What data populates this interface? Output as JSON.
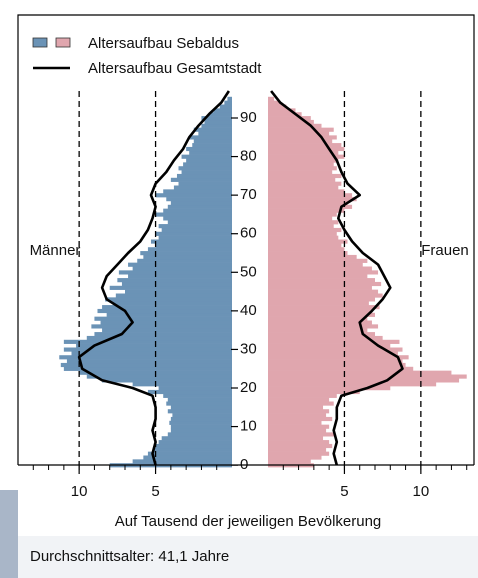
{
  "chart_data": {
    "type": "pyramid",
    "left_label": "Männer",
    "right_label": "Frauen",
    "xlabel": "Auf Tausend der jeweiligen Bevölkerung",
    "footer": "Durchschnittsalter: 41,1 Jahre",
    "xlim": [
      0,
      14
    ],
    "xticks": [
      5,
      10
    ],
    "ylim": [
      -1,
      97
    ],
    "yticks": [
      0,
      10,
      20,
      30,
      40,
      50,
      60,
      70,
      80,
      90
    ],
    "ages": [
      0,
      1,
      2,
      3,
      4,
      5,
      6,
      7,
      8,
      9,
      10,
      11,
      12,
      13,
      14,
      15,
      16,
      17,
      18,
      19,
      20,
      21,
      22,
      23,
      24,
      25,
      26,
      27,
      28,
      29,
      30,
      31,
      32,
      33,
      34,
      35,
      36,
      37,
      38,
      39,
      40,
      41,
      42,
      43,
      44,
      45,
      46,
      47,
      48,
      49,
      50,
      51,
      52,
      53,
      54,
      55,
      56,
      57,
      58,
      59,
      60,
      61,
      62,
      63,
      64,
      65,
      66,
      67,
      68,
      69,
      70,
      71,
      72,
      73,
      74,
      75,
      76,
      77,
      78,
      79,
      80,
      81,
      82,
      83,
      84,
      85,
      86,
      87,
      88,
      89,
      90,
      91,
      92,
      93,
      94,
      95
    ],
    "series": [
      {
        "name": "Altersaufbau Sebaldus",
        "colors": [
          "#6b93b6",
          "#e0a6ae"
        ],
        "male": [
          8.0,
          6.5,
          5.8,
          5.5,
          5.2,
          5.0,
          4.8,
          4.6,
          4.2,
          4.0,
          4.0,
          4.1,
          4.0,
          3.9,
          4.2,
          4.0,
          4.3,
          4.2,
          4.5,
          5.5,
          4.8,
          6.5,
          8.5,
          9.5,
          10.0,
          11.0,
          11.2,
          10.8,
          11.3,
          10.5,
          11.0,
          10.2,
          11.0,
          9.5,
          9.0,
          8.5,
          9.2,
          8.6,
          9.0,
          8.2,
          8.8,
          8.5,
          7.8,
          8.3,
          7.6,
          7.0,
          8.0,
          7.2,
          7.5,
          6.8,
          7.4,
          6.5,
          6.8,
          6.2,
          5.8,
          6.0,
          5.5,
          5.0,
          5.3,
          4.8,
          5.0,
          4.6,
          4.8,
          4.2,
          4.5,
          5.0,
          4.5,
          4.2,
          4.0,
          4.3,
          5.0,
          4.5,
          3.8,
          3.5,
          4.0,
          3.6,
          3.3,
          3.5,
          3.2,
          3.0,
          3.3,
          2.8,
          3.0,
          2.6,
          2.5,
          2.8,
          2.2,
          2.5,
          2.0,
          1.8,
          2.0,
          1.5,
          1.2,
          0.8,
          0.5,
          0.3
        ],
        "female": [
          3.0,
          2.8,
          3.5,
          4.0,
          3.8,
          4.2,
          4.0,
          3.6,
          4.4,
          3.8,
          4.0,
          3.5,
          4.2,
          3.8,
          4.0,
          3.6,
          4.3,
          4.0,
          4.5,
          6.0,
          8.0,
          11.0,
          12.5,
          13.0,
          12.0,
          9.5,
          9.0,
          8.8,
          9.2,
          8.5,
          8.8,
          8.0,
          8.6,
          7.5,
          7.0,
          6.5,
          7.2,
          6.8,
          6.5,
          7.0,
          6.8,
          7.3,
          6.6,
          7.0,
          7.5,
          7.2,
          6.8,
          7.4,
          7.0,
          6.5,
          7.2,
          6.8,
          6.2,
          6.5,
          5.8,
          5.2,
          5.0,
          4.8,
          5.2,
          4.6,
          4.5,
          4.8,
          4.3,
          4.6,
          4.2,
          4.5,
          5.0,
          5.5,
          5.2,
          5.8,
          5.5,
          5.0,
          4.6,
          4.8,
          4.4,
          4.8,
          4.2,
          4.5,
          4.3,
          4.6,
          5.0,
          4.6,
          5.0,
          4.8,
          4.2,
          4.5,
          4.0,
          4.3,
          3.5,
          3.0,
          2.8,
          2.2,
          1.8,
          1.2,
          0.8,
          0.4
        ]
      },
      {
        "name": "Altersaufbau Gesamtstadt",
        "color": "#000000",
        "ages": [
          0,
          3,
          6,
          9,
          12,
          15,
          18,
          20,
          22,
          25,
          28,
          31,
          34,
          37,
          40,
          43,
          46,
          49,
          52,
          55,
          58,
          61,
          64,
          67,
          70,
          73,
          76,
          79,
          82,
          85,
          88,
          91,
          94,
          97
        ],
        "male": [
          5.0,
          5.2,
          5.0,
          5.2,
          5.0,
          5.0,
          5.2,
          6.5,
          8.5,
          9.8,
          10.0,
          9.0,
          7.2,
          6.5,
          7.0,
          8.2,
          8.5,
          8.2,
          7.5,
          6.8,
          6.0,
          5.5,
          5.2,
          5.0,
          5.3,
          5.0,
          4.3,
          3.8,
          3.2,
          2.8,
          2.2,
          1.5,
          0.7,
          0.2
        ],
        "female": [
          4.5,
          4.3,
          4.5,
          4.3,
          4.5,
          4.5,
          4.8,
          6.5,
          7.8,
          8.8,
          8.5,
          7.2,
          6.2,
          6.0,
          6.8,
          7.5,
          8.0,
          7.6,
          7.2,
          6.2,
          5.5,
          5.0,
          4.6,
          4.8,
          6.0,
          5.2,
          4.8,
          4.5,
          4.0,
          3.5,
          2.8,
          1.8,
          0.8,
          0.2
        ]
      }
    ]
  }
}
